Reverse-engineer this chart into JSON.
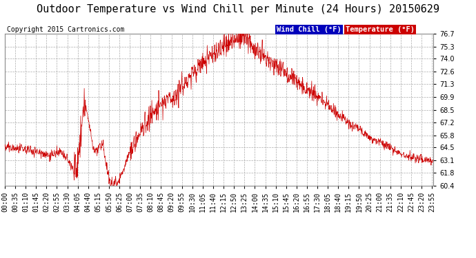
{
  "title": "Outdoor Temperature vs Wind Chill per Minute (24 Hours) 20150629",
  "copyright": "Copyright 2015 Cartronics.com",
  "legend_wind": "Wind Chill (°F)",
  "legend_temp": "Temperature (°F)",
  "legend_wind_bg": "#0000bb",
  "legend_temp_bg": "#cc0000",
  "line_color": "#cc0000",
  "bg_color": "#ffffff",
  "plot_bg": "#ffffff",
  "grid_color": "#aaaaaa",
  "ylim_min": 60.4,
  "ylim_max": 76.7,
  "yticks": [
    60.4,
    61.8,
    63.1,
    64.5,
    65.8,
    67.2,
    68.5,
    69.9,
    71.3,
    72.6,
    74.0,
    75.3,
    76.7
  ],
  "title_fontsize": 11,
  "copyright_fontsize": 7,
  "tick_fontsize": 7,
  "legend_fontsize": 7.5,
  "xtick_step": 35
}
